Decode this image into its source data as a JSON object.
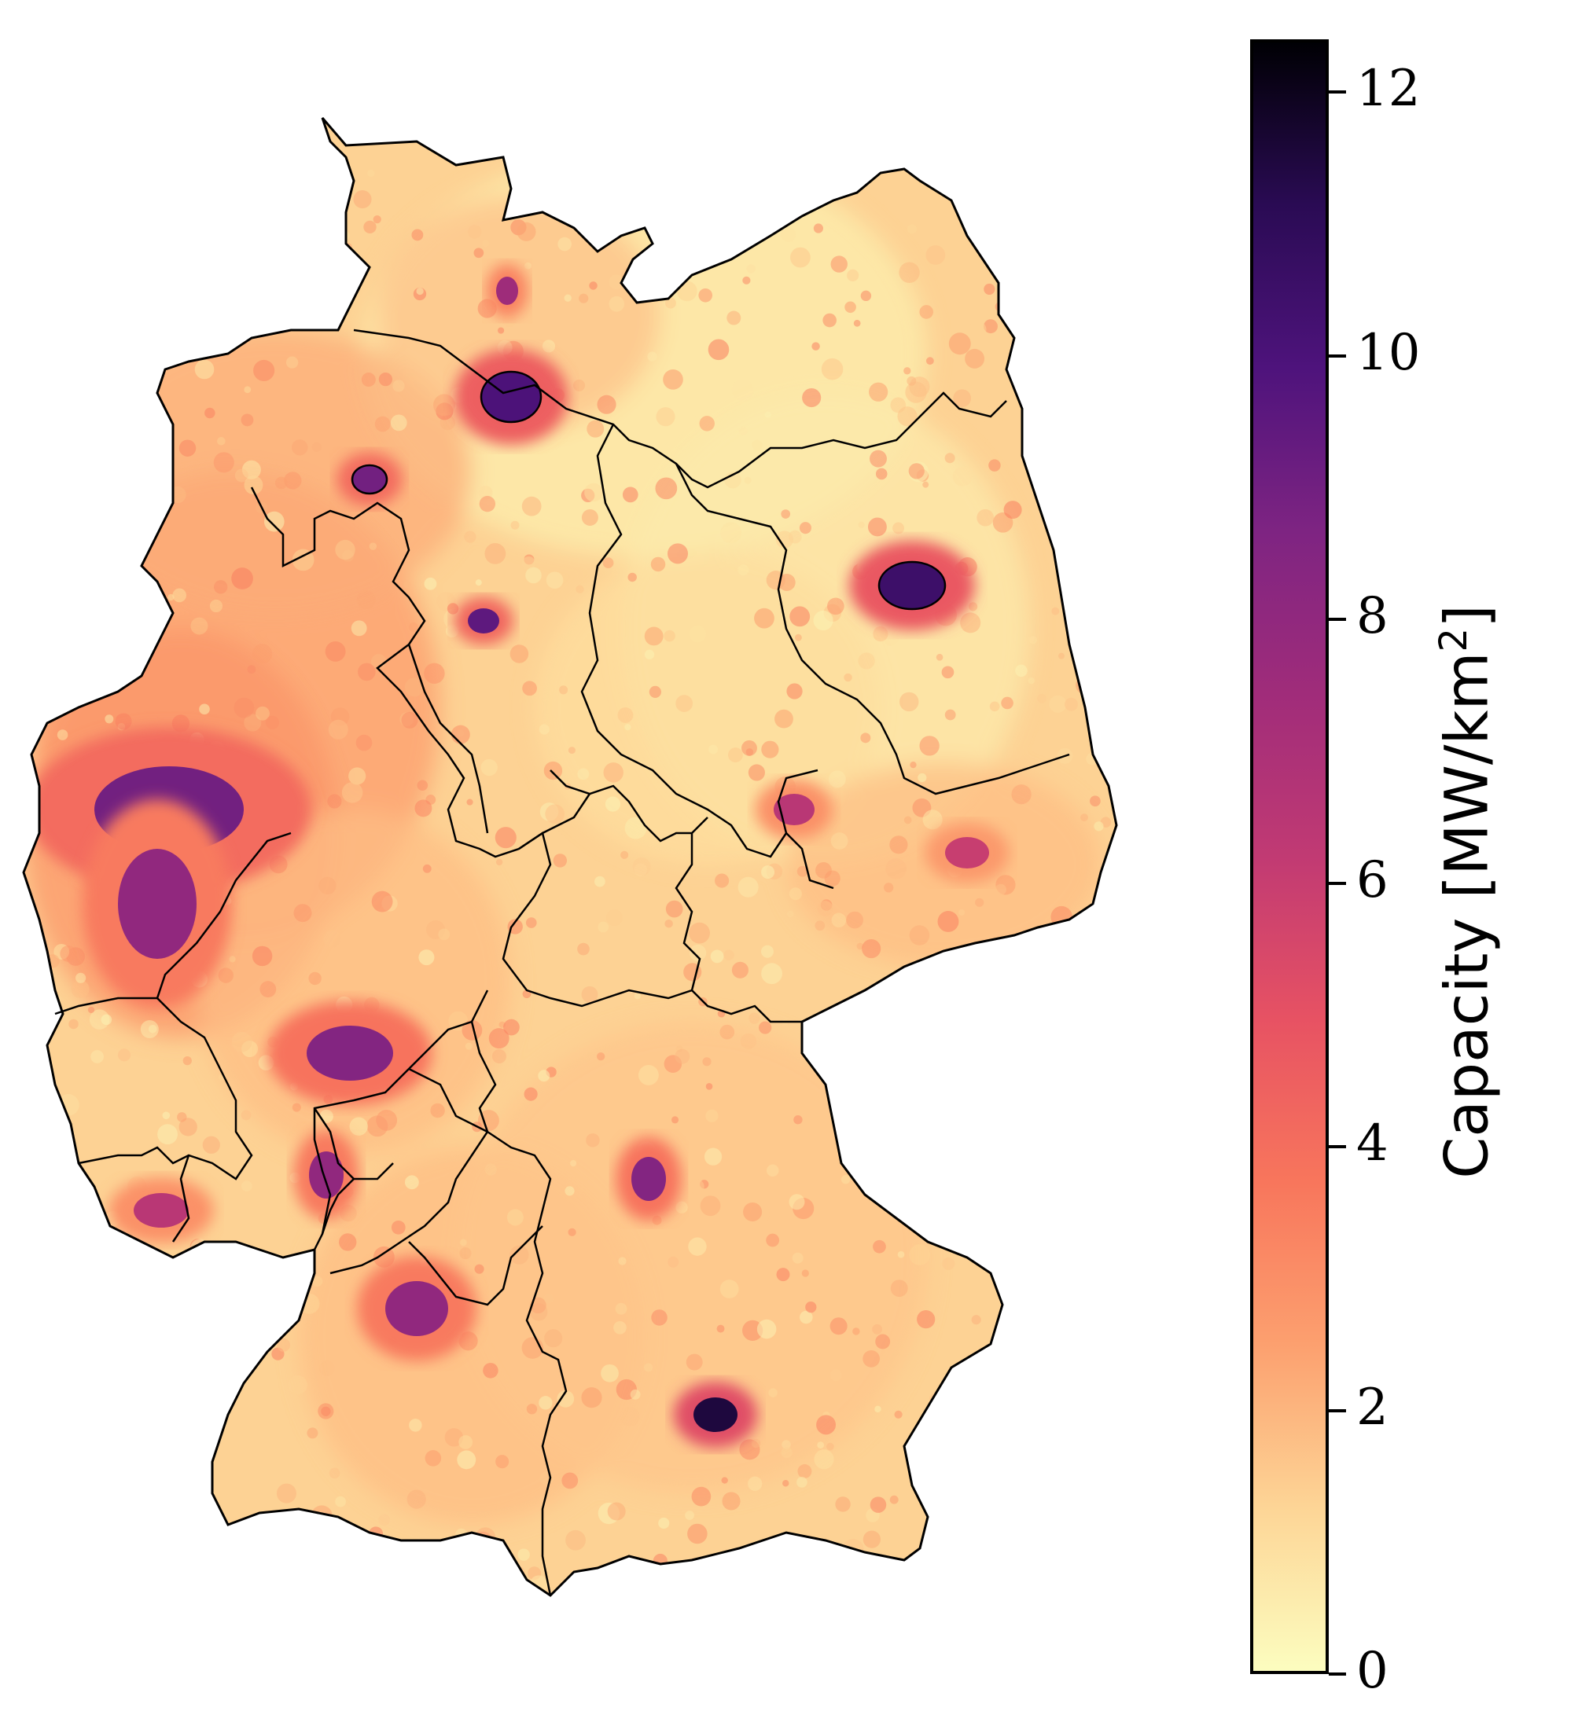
{
  "map": {
    "region": "Germany",
    "colormap": "magma_r",
    "background": "#ffffff",
    "boundary_color": "#000000",
    "hotspots": [
      {
        "city": "Berlin",
        "value": 10.5
      },
      {
        "city": "Hamburg",
        "value": 10.0
      },
      {
        "city": "Munich",
        "value": 11.5
      },
      {
        "city": "Bremen",
        "value": 9.0
      },
      {
        "city": "Hannover",
        "value": 9.5
      },
      {
        "city": "Ruhr",
        "value": 9.0
      },
      {
        "city": "Cologne",
        "value": 8.0
      },
      {
        "city": "Frankfurt",
        "value": 8.5
      },
      {
        "city": "Stuttgart",
        "value": 8.0
      },
      {
        "city": "Nuremberg",
        "value": 8.5
      },
      {
        "city": "Leipzig",
        "value": 6.5
      },
      {
        "city": "Dresden",
        "value": 6.0
      },
      {
        "city": "Kiel",
        "value": 7.5
      },
      {
        "city": "Mannheim",
        "value": 8.0
      },
      {
        "city": "Saarbruecken",
        "value": 6.5
      }
    ]
  },
  "colorbar": {
    "label_main": "Capacity [MW/km",
    "label_sup": "2",
    "label_end": "]",
    "min": 0,
    "max": 12.4,
    "ticks": [
      "0",
      "2",
      "4",
      "6",
      "8",
      "10",
      "12"
    ]
  }
}
